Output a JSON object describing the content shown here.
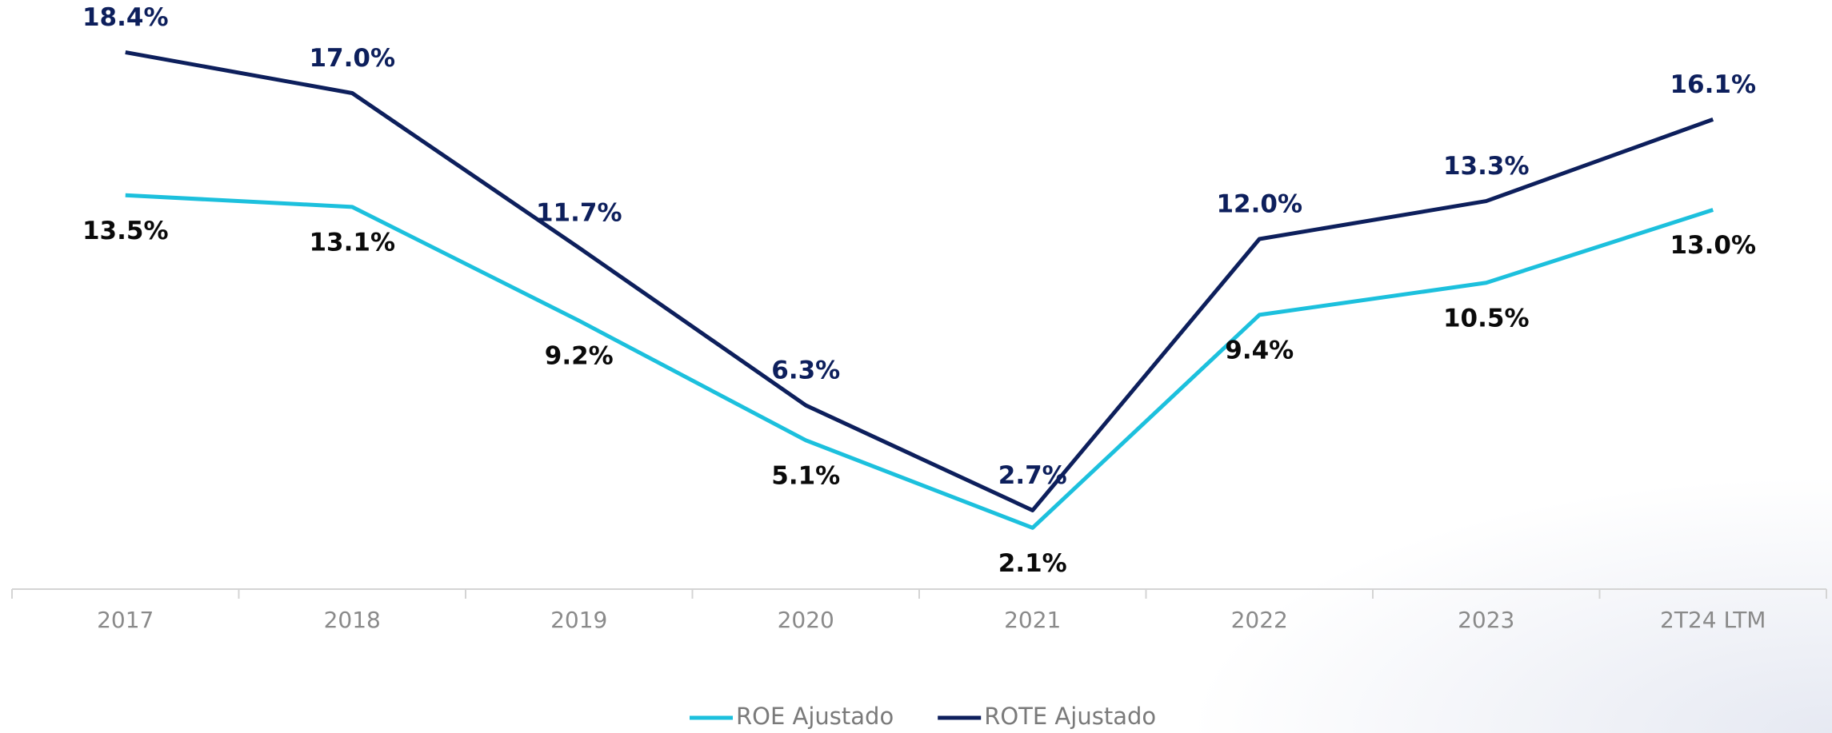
{
  "chart_data": {
    "type": "line",
    "categories": [
      "2017",
      "2018",
      "2019",
      "2020",
      "2021",
      "2022",
      "2023",
      "2T24 LTM"
    ],
    "series": [
      {
        "name": "ROE Ajustado",
        "color": "#1cc0dd",
        "values": [
          13.5,
          13.1,
          9.2,
          5.1,
          2.1,
          9.4,
          10.5,
          13.0
        ],
        "value_labels": [
          "13.5%",
          "13.1%",
          "9.2%",
          "5.1%",
          "2.1%",
          "9.4%",
          "10.5%",
          "13.0%"
        ]
      },
      {
        "name": "ROTE Ajustado",
        "color": "#0d1f5c",
        "values": [
          18.4,
          17.0,
          11.7,
          6.3,
          2.7,
          12.0,
          13.3,
          16.1
        ],
        "value_labels": [
          "18.4%",
          "17.0%",
          "11.7%",
          "6.3%",
          "2.7%",
          "12.0%",
          "13.3%",
          "16.1%"
        ]
      }
    ],
    "ylim": [
      0,
      20
    ]
  }
}
